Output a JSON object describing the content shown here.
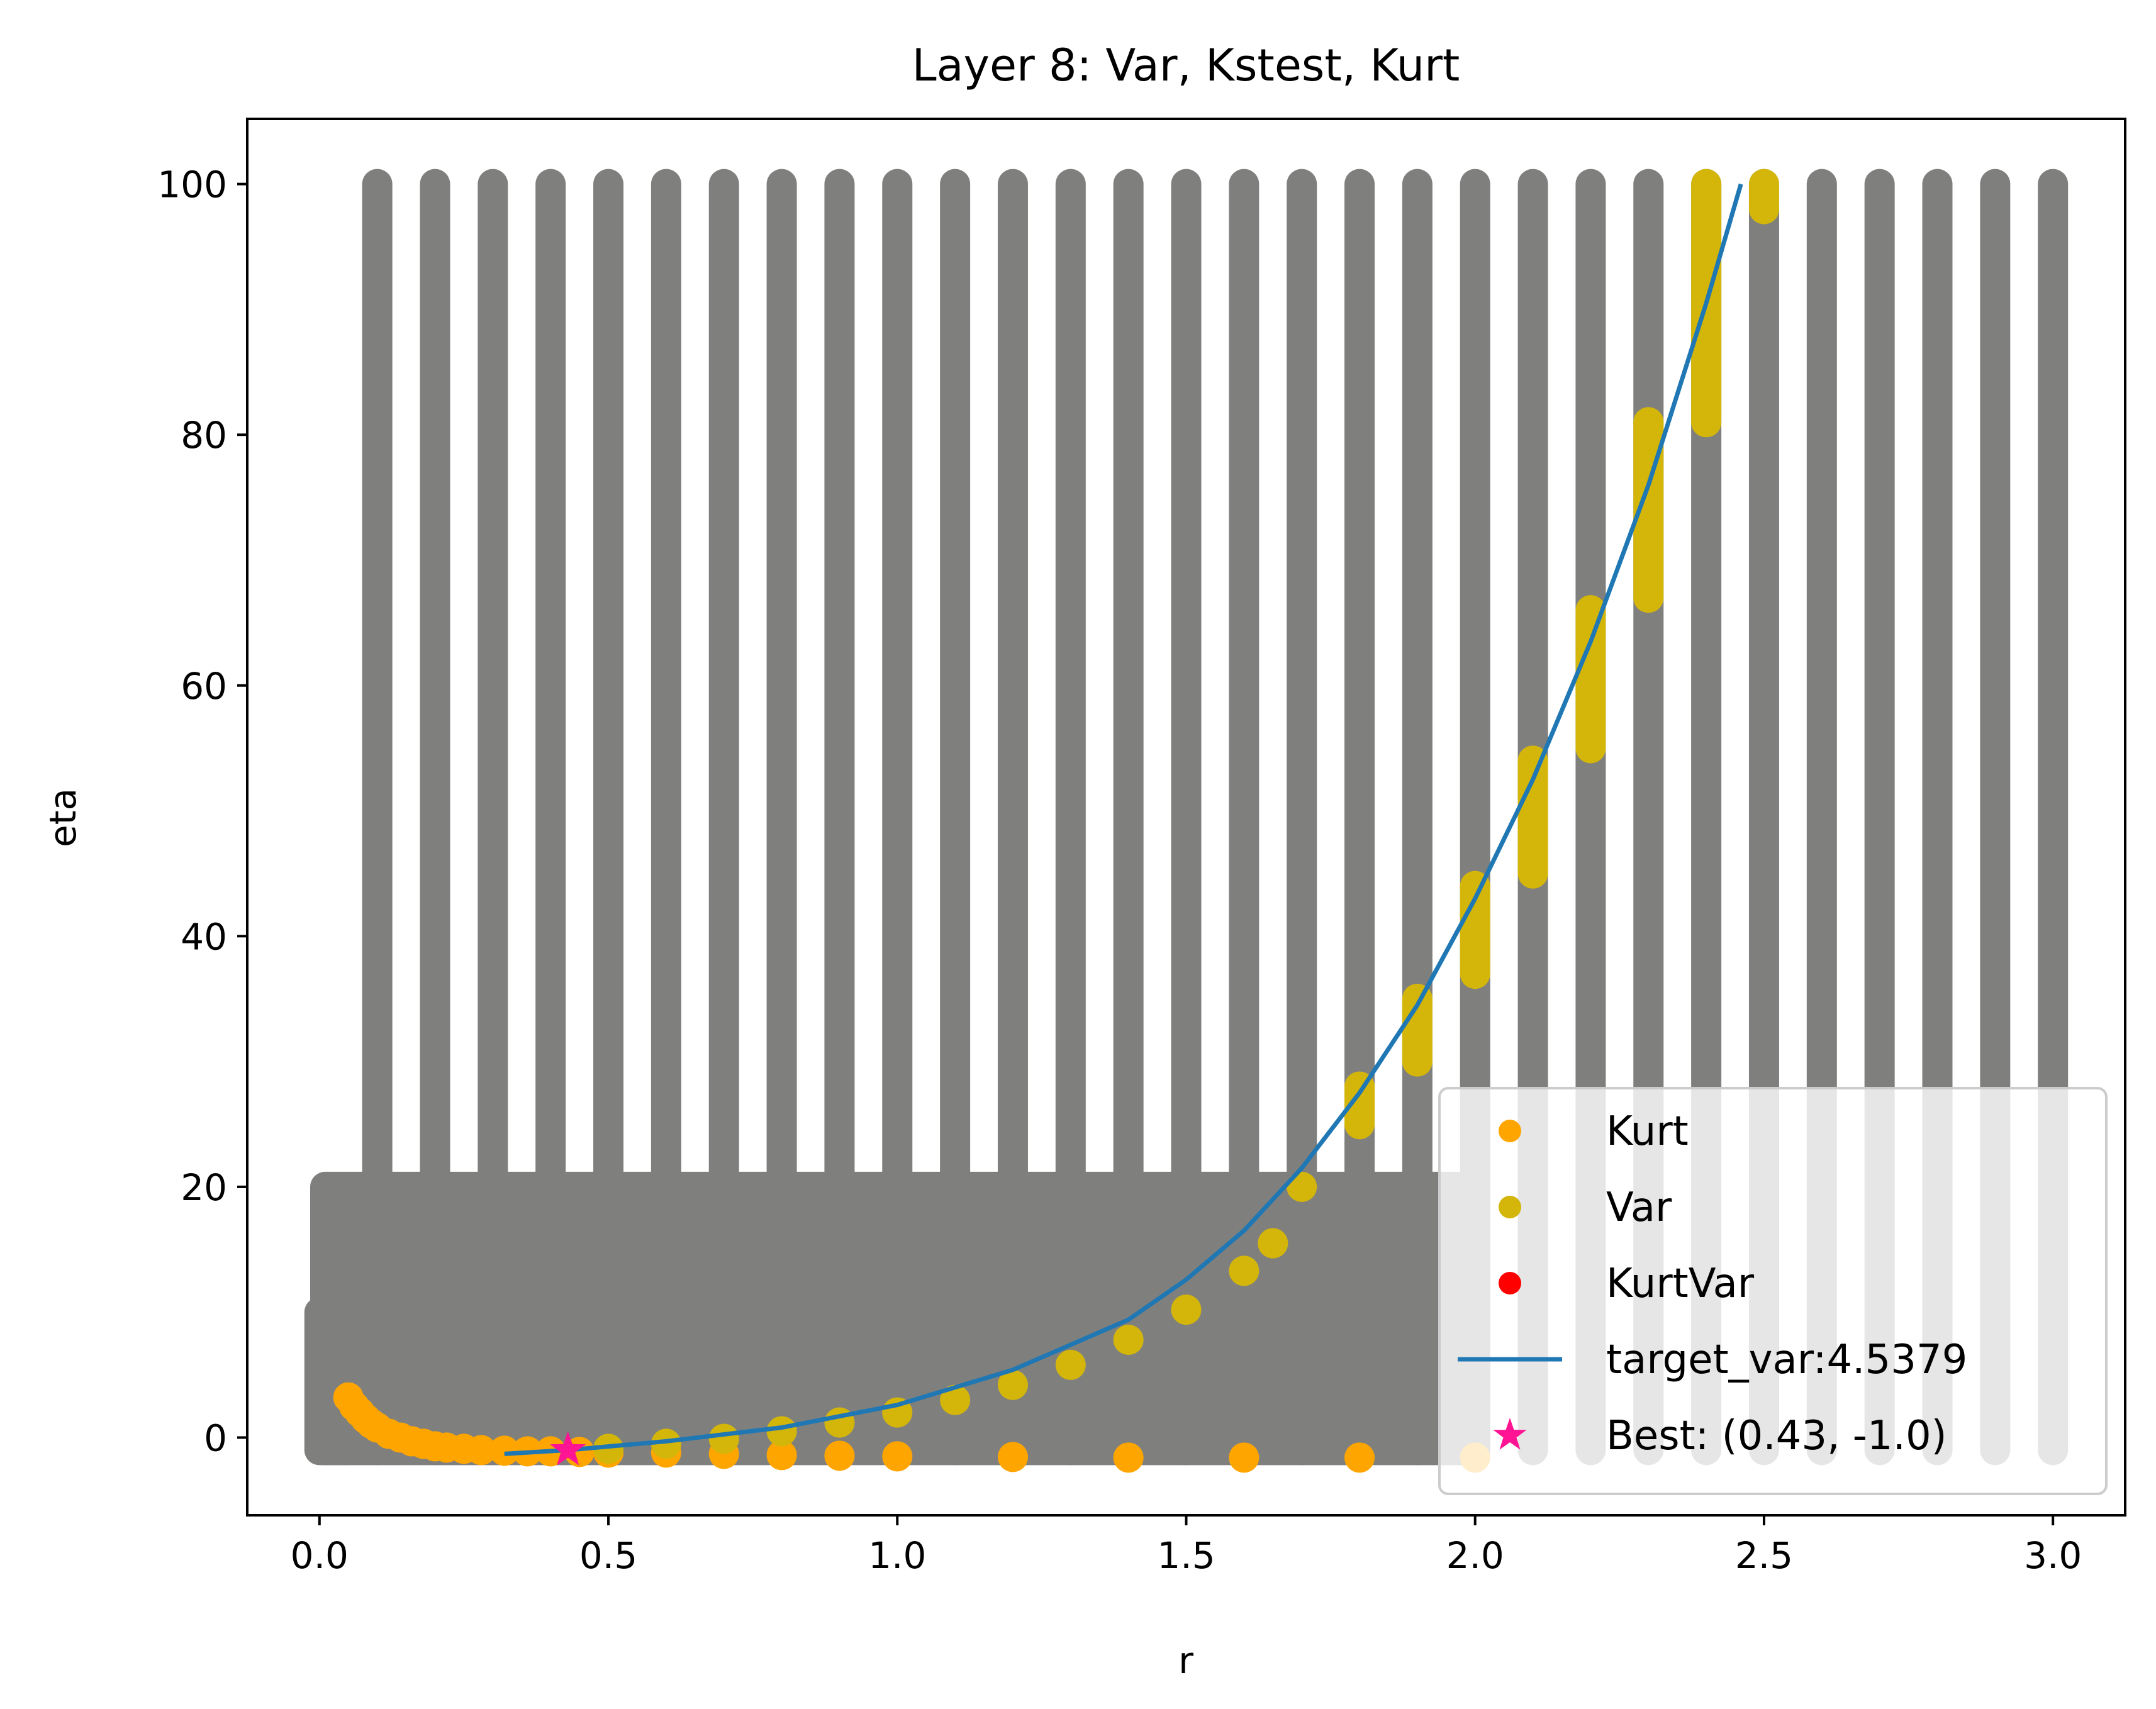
{
  "chart_data": {
    "type": "scatter",
    "title": "Layer 8: Var, Kstest, Kurt",
    "xlabel": "r",
    "ylabel": "eta",
    "xlim": [
      -0.125,
      3.125
    ],
    "ylim": [
      -6.2,
      105.2
    ],
    "x_ticks": [
      0.0,
      0.5,
      1.0,
      1.5,
      2.0,
      2.5,
      3.0
    ],
    "x_tick_labels": [
      "0.0",
      "0.5",
      "1.0",
      "1.5",
      "2.0",
      "2.5",
      "3.0"
    ],
    "y_ticks": [
      0,
      20,
      40,
      60,
      80,
      100
    ],
    "y_tick_labels": [
      "0",
      "20",
      "40",
      "60",
      "80",
      "100"
    ],
    "grid": false,
    "legend_position": "lower-right",
    "colors": {
      "grid_points": "#7f807d",
      "kurt": "#ffa500",
      "var": "#d4b60a",
      "kurtvar": "#ff0000",
      "target_line": "#1f77b4",
      "best": "#ff1493"
    },
    "grid_points": {
      "name": "",
      "x_columns": [
        0.1,
        0.2,
        0.3,
        0.4,
        0.5,
        0.6,
        0.7,
        0.8,
        0.9,
        1.0,
        1.1,
        1.2,
        1.3,
        1.4,
        1.5,
        1.6,
        1.7,
        1.8,
        1.9,
        2.0,
        2.1,
        2.2,
        2.3,
        2.4,
        2.5,
        2.6,
        2.7,
        2.8,
        2.9,
        3.0
      ],
      "eta_range_columns": [
        -1,
        100
      ],
      "dense_region_x": [
        0.01,
        2.0
      ],
      "dense_region_eta": [
        -1,
        20
      ],
      "low_region_x": [
        0.0,
        0.05
      ],
      "low_region_eta": [
        -1,
        10
      ]
    },
    "series": [
      {
        "name": "Kurt",
        "marker": "circle",
        "points": [
          [
            0.05,
            3.2
          ],
          [
            0.06,
            2.5
          ],
          [
            0.07,
            2.0
          ],
          [
            0.08,
            1.5
          ],
          [
            0.09,
            1.1
          ],
          [
            0.1,
            0.8
          ],
          [
            0.12,
            0.3
          ],
          [
            0.14,
            0.0
          ],
          [
            0.16,
            -0.3
          ],
          [
            0.18,
            -0.5
          ],
          [
            0.2,
            -0.7
          ],
          [
            0.22,
            -0.8
          ],
          [
            0.25,
            -0.9
          ],
          [
            0.28,
            -1.0
          ],
          [
            0.32,
            -1.05
          ],
          [
            0.36,
            -1.1
          ],
          [
            0.4,
            -1.1
          ],
          [
            0.45,
            -1.15
          ],
          [
            0.5,
            -1.2
          ],
          [
            0.6,
            -1.2
          ],
          [
            0.7,
            -1.3
          ],
          [
            0.8,
            -1.4
          ],
          [
            0.9,
            -1.45
          ],
          [
            1.0,
            -1.5
          ],
          [
            1.2,
            -1.55
          ],
          [
            1.4,
            -1.6
          ],
          [
            1.6,
            -1.6
          ],
          [
            1.8,
            -1.6
          ],
          [
            2.0,
            -1.6
          ]
        ]
      },
      {
        "name": "Var",
        "marker": "circle",
        "points": [
          [
            0.5,
            -0.9
          ],
          [
            0.6,
            -0.5
          ],
          [
            0.7,
            -0.1
          ],
          [
            0.8,
            0.5
          ],
          [
            0.9,
            1.2
          ],
          [
            1.0,
            2.0
          ],
          [
            1.1,
            3.0
          ],
          [
            1.2,
            4.2
          ],
          [
            1.3,
            5.8
          ],
          [
            1.4,
            7.8
          ],
          [
            1.5,
            10.2
          ],
          [
            1.6,
            13.3
          ],
          [
            1.65,
            15.5
          ],
          [
            1.7,
            20.0
          ],
          [
            1.8,
            25.0
          ],
          [
            1.8,
            28.0
          ],
          [
            1.9,
            30.0
          ],
          [
            1.9,
            35.0
          ],
          [
            2.0,
            37.0
          ],
          [
            2.0,
            44.0
          ],
          [
            2.1,
            45.0
          ],
          [
            2.1,
            54.0
          ],
          [
            2.2,
            55.0
          ],
          [
            2.2,
            66.0
          ],
          [
            2.3,
            67.0
          ],
          [
            2.3,
            81.0
          ],
          [
            2.4,
            81.0
          ],
          [
            2.4,
            100.0
          ],
          [
            2.5,
            98.0
          ],
          [
            2.5,
            100.0
          ]
        ]
      },
      {
        "name": "KurtVar",
        "marker": "circle",
        "points": []
      },
      {
        "name": "target_var:4.5379",
        "marker": "line",
        "points": [
          [
            0.32,
            -1.3
          ],
          [
            0.43,
            -1.0
          ],
          [
            0.6,
            -0.3
          ],
          [
            0.8,
            0.8
          ],
          [
            1.0,
            2.6
          ],
          [
            1.2,
            5.4
          ],
          [
            1.4,
            9.4
          ],
          [
            1.5,
            12.6
          ],
          [
            1.6,
            16.5
          ],
          [
            1.7,
            21.5
          ],
          [
            1.8,
            27.5
          ],
          [
            1.9,
            34.5
          ],
          [
            2.0,
            43.0
          ],
          [
            2.1,
            52.5
          ],
          [
            2.2,
            63.5
          ],
          [
            2.3,
            76.0
          ],
          [
            2.4,
            90.5
          ],
          [
            2.46,
            100.0
          ]
        ]
      },
      {
        "name": "Best: (0.43, -1.0)",
        "marker": "star",
        "points": [
          [
            0.43,
            -1.0
          ]
        ]
      }
    ]
  }
}
